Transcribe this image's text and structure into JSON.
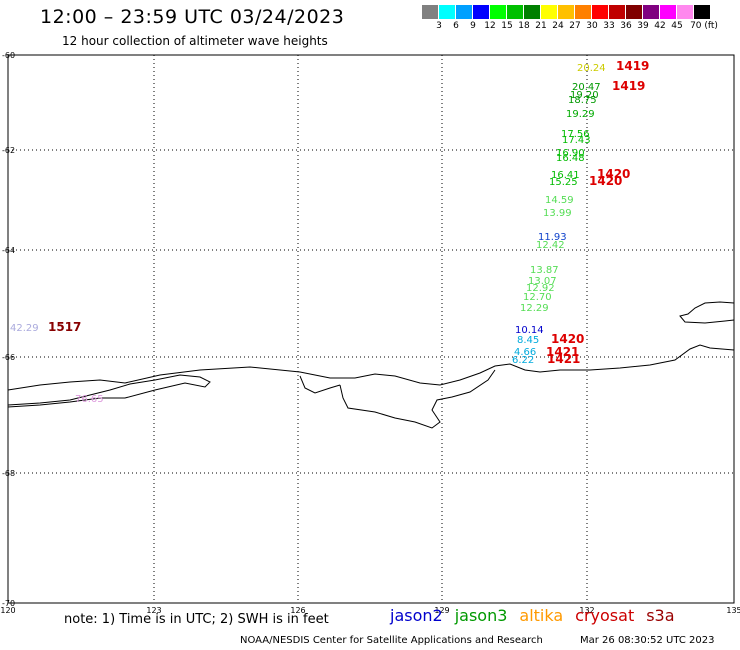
{
  "header": {
    "title": "12:00 – 23:59 UTC 03/24/2023",
    "subtitle": "12 hour collection of altimeter wave heights"
  },
  "legend": {
    "colors": [
      "#808080",
      "#00ffff",
      "#00a0ff",
      "#0000ff",
      "#00ff00",
      "#00c000",
      "#008000",
      "#ffff00",
      "#ffc000",
      "#ff8000",
      "#ff0000",
      "#c00000",
      "#800000",
      "#800080",
      "#ff00ff",
      "#ff88ee",
      "#000000"
    ],
    "labels": [
      "3",
      "6",
      "9",
      "12",
      "15",
      "18",
      "21",
      "24",
      "27",
      "30",
      "33",
      "36",
      "39",
      "42",
      "45",
      "70 (ft)"
    ]
  },
  "axes": {
    "lat_labels": [
      "-60",
      "-62",
      "-64",
      "-66",
      "-68",
      "-70"
    ],
    "lon_labels": [
      "120",
      "123",
      "126",
      "129",
      "132",
      "135"
    ]
  },
  "observations": [
    {
      "text": "20.24",
      "color": "#cccc00"
    },
    {
      "text": "1419",
      "color": "#dd0000"
    },
    {
      "text": "20.47",
      "color": "#009900"
    },
    {
      "text": "1419",
      "color": "#dd0000"
    },
    {
      "text": "19.20",
      "color": "#009900"
    },
    {
      "text": "18.75",
      "color": "#009900"
    },
    {
      "text": "19.29",
      "color": "#00aa00"
    },
    {
      "text": "17.56",
      "color": "#00bb00"
    },
    {
      "text": "17.43",
      "color": "#00bb00"
    },
    {
      "text": "16.90",
      "color": "#00bb00"
    },
    {
      "text": "16.48",
      "color": "#00bb00"
    },
    {
      "text": "16.41",
      "color": "#00bb00"
    },
    {
      "text": "1420",
      "color": "#dd0000"
    },
    {
      "text": "15.25",
      "color": "#00bb00"
    },
    {
      "text": "1420",
      "color": "#dd0000"
    },
    {
      "text": "14.59",
      "color": "#55dd55"
    },
    {
      "text": "13.99",
      "color": "#55dd55"
    },
    {
      "text": "11.93",
      "color": "#1144cc"
    },
    {
      "text": "12.42",
      "color": "#55dd55"
    },
    {
      "text": "13.87",
      "color": "#55dd55"
    },
    {
      "text": "13.07",
      "color": "#55dd55"
    },
    {
      "text": "12.92",
      "color": "#55dd55"
    },
    {
      "text": "12.70",
      "color": "#55dd55"
    },
    {
      "text": "12.29",
      "color": "#55dd55"
    },
    {
      "text": "42.29",
      "color": "#aaaadd"
    },
    {
      "text": "1517",
      "color": "#880000"
    },
    {
      "text": "10.14",
      "color": "#0000cc"
    },
    {
      "text": "1420",
      "color": "#dd0000"
    },
    {
      "text": "8.45",
      "color": "#00aadd"
    },
    {
      "text": "4.66",
      "color": "#00aadd"
    },
    {
      "text": "1421",
      "color": "#dd0000"
    },
    {
      "text": "6.22",
      "color": "#00aadd"
    },
    {
      "text": "1421",
      "color": "#dd0000"
    },
    {
      "text": "76.65",
      "color": "#dd99dd"
    }
  ],
  "footer": {
    "note": "note: 1) Time is in UTC; 2) SWH is in feet",
    "missions": [
      {
        "name": "jason2",
        "color": "#0000cc"
      },
      {
        "name": "jason3",
        "color": "#009900"
      },
      {
        "name": "altika",
        "color": "#ff9900"
      },
      {
        "name": "cryosat",
        "color": "#cc0000"
      },
      {
        "name": "s3a",
        "color": "#990000"
      }
    ],
    "credit": "NOAA/NESDIS Center for Satellite Applications and Research",
    "generated": "Mar 26 08:30:52 UTC 2023"
  }
}
